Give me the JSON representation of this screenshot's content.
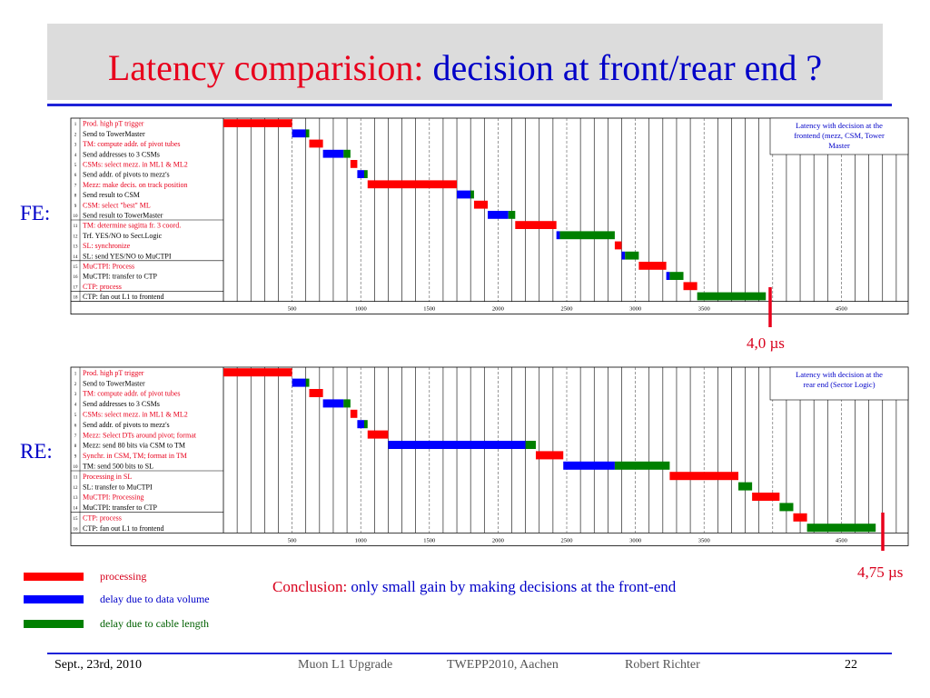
{
  "title": {
    "part1": "Latency comparision:",
    "part2": "decision at front/rear end ?"
  },
  "labels": {
    "fe": "FE:",
    "re": "RE:"
  },
  "latency": {
    "fe": "4,0 µs",
    "re": "4,75 µs"
  },
  "legend": [
    {
      "label": "processing",
      "color": "#ff0000"
    },
    {
      "label": "delay due to data volume",
      "color": "#0000ff"
    },
    {
      "label": "delay due to cable length",
      "color": "#008000"
    }
  ],
  "conclusion": {
    "part1": "Conclusion:",
    "part2": "only small gain by making decisions at the front-end"
  },
  "footer": {
    "date": "Sept., 23rd, 2010",
    "mid1": "Muon L1 Upgrade",
    "mid2": "TWEPP2010, Aachen",
    "mid3": "Robert Richter",
    "page": "22"
  },
  "colors": {
    "processing": "#ff0000",
    "data_volume": "#0000ff",
    "cable": "#008000",
    "text_red": "#e8001c",
    "text_blue": "#0000c8"
  },
  "chart_data": [
    {
      "type": "gantt",
      "id": "fe",
      "xlabel": "",
      "ylabel": "",
      "xticks": [
        500,
        1000,
        1500,
        2000,
        2500,
        3000,
        3500,
        4500
      ],
      "legend_box": "Latency with decision at the frontend (mezz, CSM, Tower Master",
      "tasks": [
        {
          "n": "1",
          "label": "Prod. high pT trigger",
          "red": true,
          "segs": [
            {
              "c": "r",
              "s": 0,
              "e": 500
            }
          ]
        },
        {
          "n": "2",
          "label": "Send to TowerMaster",
          "red": false,
          "segs": [
            {
              "c": "b",
              "s": 500,
              "e": 600
            },
            {
              "c": "g",
              "s": 600,
              "e": 625
            }
          ]
        },
        {
          "n": "3",
          "label": "TM: compute addr. of pivot tubes",
          "red": true,
          "segs": [
            {
              "c": "r",
              "s": 625,
              "e": 725
            }
          ]
        },
        {
          "n": "4",
          "label": "Send addresses to 3 CSMs",
          "red": false,
          "segs": [
            {
              "c": "b",
              "s": 725,
              "e": 875
            },
            {
              "c": "g",
              "s": 875,
              "e": 925
            }
          ]
        },
        {
          "n": "5",
          "label": "CSMs: select mezz. in ML1 & ML2",
          "red": true,
          "segs": [
            {
              "c": "r",
              "s": 925,
              "e": 975
            }
          ]
        },
        {
          "n": "6",
          "label": "Send addr. of pivots to mezz's",
          "red": false,
          "segs": [
            {
              "c": "b",
              "s": 975,
              "e": 1025
            },
            {
              "c": "g",
              "s": 1025,
              "e": 1050
            }
          ]
        },
        {
          "n": "7",
          "label": "Mezz: make decis. on track position",
          "red": true,
          "segs": [
            {
              "c": "r",
              "s": 1050,
              "e": 1700
            }
          ]
        },
        {
          "n": "8",
          "label": "Send result to CSM",
          "red": false,
          "segs": [
            {
              "c": "b",
              "s": 1700,
              "e": 1800
            },
            {
              "c": "g",
              "s": 1800,
              "e": 1825
            }
          ]
        },
        {
          "n": "9",
          "label": "CSM: select \"best\" ML",
          "red": true,
          "segs": [
            {
              "c": "r",
              "s": 1825,
              "e": 1925
            }
          ]
        },
        {
          "n": "10",
          "label": "Send result to TowerMaster",
          "red": false,
          "segs": [
            {
              "c": "b",
              "s": 1925,
              "e": 2075
            },
            {
              "c": "g",
              "s": 2075,
              "e": 2125
            }
          ]
        },
        {
          "n": "11",
          "label": "TM: determine sagitta fr. 3 coord.",
          "red": true,
          "segs": [
            {
              "c": "r",
              "s": 2125,
              "e": 2425
            }
          ]
        },
        {
          "n": "12",
          "label": "Trf. YES/NO to Sect.Logic",
          "red": false,
          "segs": [
            {
              "c": "b",
              "s": 2425,
              "e": 2450
            },
            {
              "c": "g",
              "s": 2450,
              "e": 2850
            }
          ]
        },
        {
          "n": "13",
          "label": "SL: synchronize",
          "red": true,
          "segs": [
            {
              "c": "r",
              "s": 2850,
              "e": 2900
            }
          ]
        },
        {
          "n": "14",
          "label": "SL: send YES/NO to MuCTPI",
          "red": false,
          "segs": [
            {
              "c": "b",
              "s": 2900,
              "e": 2925
            },
            {
              "c": "g",
              "s": 2925,
              "e": 3025
            }
          ]
        },
        {
          "n": "15",
          "label": "MuCTPI: Process",
          "red": true,
          "segs": [
            {
              "c": "r",
              "s": 3025,
              "e": 3225
            }
          ]
        },
        {
          "n": "16",
          "label": "MuCTPI: transfer to CTP",
          "red": false,
          "segs": [
            {
              "c": "b",
              "s": 3225,
              "e": 3250
            },
            {
              "c": "g",
              "s": 3250,
              "e": 3350
            }
          ]
        },
        {
          "n": "17",
          "label": "CTP: process",
          "red": true,
          "segs": [
            {
              "c": "r",
              "s": 3350,
              "e": 3450
            }
          ]
        },
        {
          "n": "18",
          "label": "CTP: fan out L1 to frontend",
          "red": false,
          "segs": [
            {
              "c": "g",
              "s": 3450,
              "e": 3950
            }
          ]
        }
      ]
    },
    {
      "type": "gantt",
      "id": "re",
      "xlabel": "",
      "ylabel": "",
      "xticks": [
        500,
        1000,
        1500,
        2000,
        2500,
        3000,
        3500,
        4500
      ],
      "legend_box": "Latency with decision at the rear end (Sector Logic)",
      "tasks": [
        {
          "n": "1",
          "label": "Prod. high pT trigger",
          "red": true,
          "segs": [
            {
              "c": "r",
              "s": 0,
              "e": 500
            }
          ]
        },
        {
          "n": "2",
          "label": "Send to TowerMaster",
          "red": false,
          "segs": [
            {
              "c": "b",
              "s": 500,
              "e": 600
            },
            {
              "c": "g",
              "s": 600,
              "e": 625
            }
          ]
        },
        {
          "n": "3",
          "label": "TM: compute addr. of pivot tubes",
          "red": true,
          "segs": [
            {
              "c": "r",
              "s": 625,
              "e": 725
            }
          ]
        },
        {
          "n": "4",
          "label": "Send addresses to 3 CSMs",
          "red": false,
          "segs": [
            {
              "c": "b",
              "s": 725,
              "e": 875
            },
            {
              "c": "g",
              "s": 875,
              "e": 925
            }
          ]
        },
        {
          "n": "5",
          "label": "CSMs: select mezz. in ML1 & ML2",
          "red": true,
          "segs": [
            {
              "c": "r",
              "s": 925,
              "e": 975
            }
          ]
        },
        {
          "n": "6",
          "label": "Send addr. of pivots to mezz's",
          "red": false,
          "segs": [
            {
              "c": "b",
              "s": 975,
              "e": 1025
            },
            {
              "c": "g",
              "s": 1025,
              "e": 1050
            }
          ]
        },
        {
          "n": "7",
          "label": "Mezz: Select DTs around pivot; format",
          "red": true,
          "segs": [
            {
              "c": "r",
              "s": 1050,
              "e": 1200
            }
          ]
        },
        {
          "n": "8",
          "label": "Mezz: send 80 bits via CSM to TM",
          "red": false,
          "segs": [
            {
              "c": "b",
              "s": 1200,
              "e": 2200
            },
            {
              "c": "g",
              "s": 2200,
              "e": 2275
            }
          ]
        },
        {
          "n": "9",
          "label": "Synchr. in CSM, TM; format in TM",
          "red": true,
          "segs": [
            {
              "c": "r",
              "s": 2275,
              "e": 2475
            }
          ]
        },
        {
          "n": "10",
          "label": "TM: send 500 bits to SL",
          "red": false,
          "segs": [
            {
              "c": "b",
              "s": 2475,
              "e": 2850
            },
            {
              "c": "g",
              "s": 2850,
              "e": 3250
            }
          ]
        },
        {
          "n": "11",
          "label": "Processing in SL",
          "red": true,
          "segs": [
            {
              "c": "r",
              "s": 3250,
              "e": 3750
            }
          ]
        },
        {
          "n": "12",
          "label": "SL: transfer to MuCTPI",
          "red": false,
          "segs": [
            {
              "c": "g",
              "s": 3750,
              "e": 3850
            }
          ]
        },
        {
          "n": "13",
          "label": "MuCTPI: Processing",
          "red": true,
          "segs": [
            {
              "c": "r",
              "s": 3850,
              "e": 4050
            }
          ]
        },
        {
          "n": "14",
          "label": "MuCTPI: transfer to CTP",
          "red": false,
          "segs": [
            {
              "c": "g",
              "s": 4050,
              "e": 4150
            }
          ]
        },
        {
          "n": "15",
          "label": "CTP: process",
          "red": true,
          "segs": [
            {
              "c": "r",
              "s": 4150,
              "e": 4250
            }
          ]
        },
        {
          "n": "16",
          "label": "CTP: fan out L1 to frontend",
          "red": false,
          "segs": [
            {
              "c": "g",
              "s": 4250,
              "e": 4750
            }
          ]
        }
      ]
    }
  ]
}
